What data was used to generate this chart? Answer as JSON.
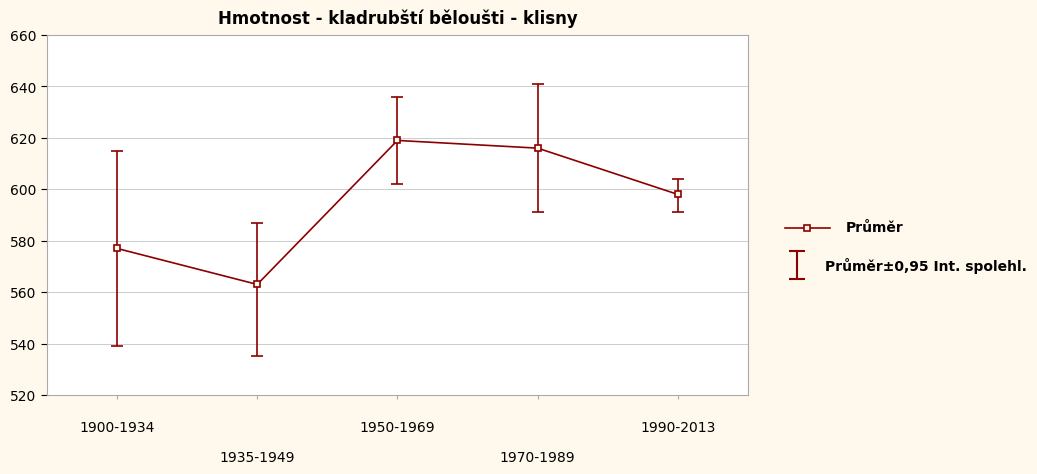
{
  "title": "Hmotnost - kladrubští běloušti - klisny",
  "background_color": "#FFF8EC",
  "plot_bg_color": "#FFFFFF",
  "line_color": "#8B0000",
  "categories": [
    "1900-1934",
    "1935-1949",
    "1950-1969",
    "1970-1989",
    "1990-2013"
  ],
  "x_positions": [
    1,
    2,
    3,
    4,
    5
  ],
  "means": [
    577,
    563,
    619,
    616,
    598
  ],
  "ci_lower": [
    539,
    535,
    602,
    591,
    591
  ],
  "ci_upper": [
    615,
    587,
    636,
    641,
    604
  ],
  "ylim": [
    520,
    660
  ],
  "yticks": [
    520,
    540,
    560,
    580,
    600,
    620,
    640,
    660
  ],
  "legend_label_mean": "Průměr",
  "legend_label_ci": "Průměr±0,95 Int. spolehl.",
  "title_fontsize": 12,
  "tick_fontsize": 10,
  "legend_fontsize": 10,
  "upper_tick_indices": [
    0,
    2,
    4
  ],
  "lower_tick_indices": [
    1,
    3
  ]
}
